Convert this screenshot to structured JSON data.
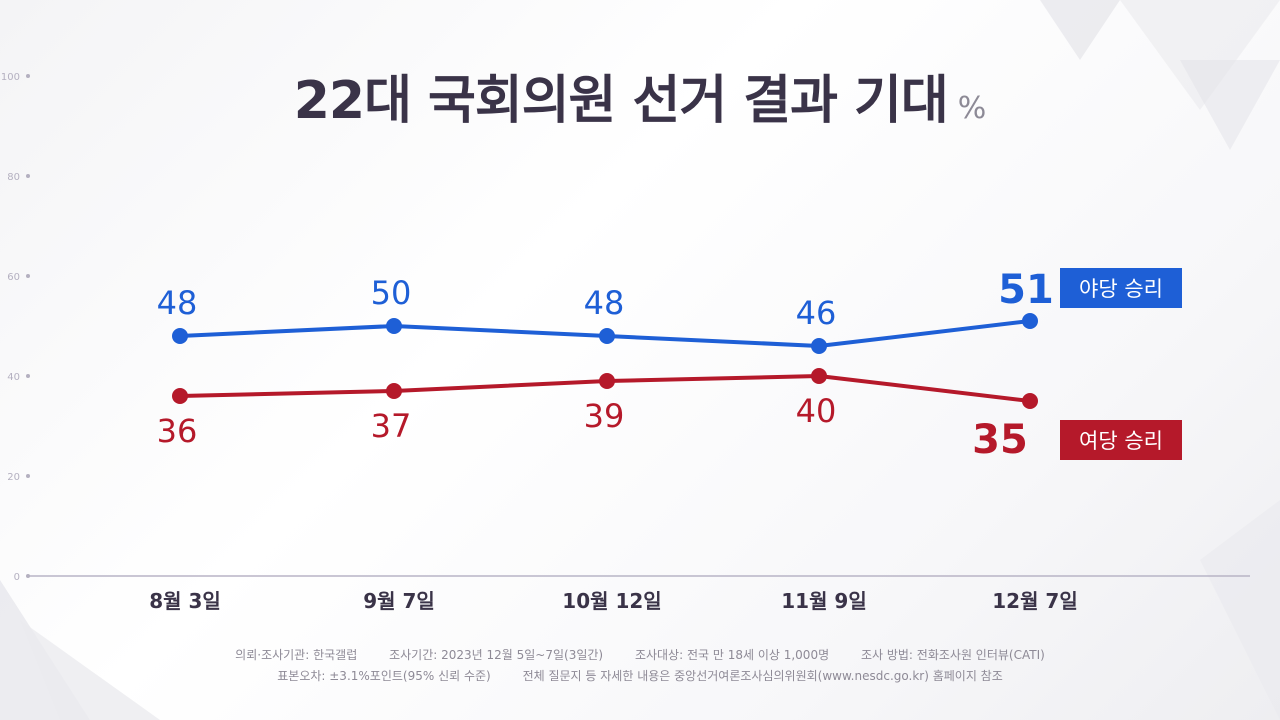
{
  "title": "22대 국회의원 선거 결과 기대",
  "unit": "%",
  "chart_data": {
    "type": "line",
    "categories": [
      "8월 3일",
      "9월 7일",
      "10월 12일",
      "11월 9일",
      "12월 7일"
    ],
    "y_ticks": [
      "100",
      "80",
      "60",
      "40",
      "20",
      "0"
    ],
    "ylim": [
      0,
      100
    ],
    "grid": false,
    "series": [
      {
        "name": "야당 승리",
        "values": [
          48,
          50,
          48,
          46,
          51
        ],
        "color": "#1e5fd6"
      },
      {
        "name": "여당 승리",
        "values": [
          36,
          37,
          39,
          40,
          35
        ],
        "color": "#b5192a"
      }
    ]
  },
  "footer": {
    "line1": [
      "의뢰·조사기관: 한국갤럽",
      "조사기간: 2023년 12월 5일~7일(3일간)",
      "조사대상: 전국 만 18세 이상 1,000명",
      "조사 방법: 전화조사원 인터뷰(CATI)"
    ],
    "line2": [
      "표본오차: ±3.1%포인트(95% 신뢰 수준)",
      "전체 질문지 등 자세한 내용은 중앙선거여론조사심의위원회(www.nesdc.go.kr) 홈페이지 참조"
    ]
  },
  "colors": {
    "title": "#3a3348",
    "axis": "#b8b4c6",
    "opposition": "#1e5fd6",
    "ruling": "#b5192a"
  }
}
